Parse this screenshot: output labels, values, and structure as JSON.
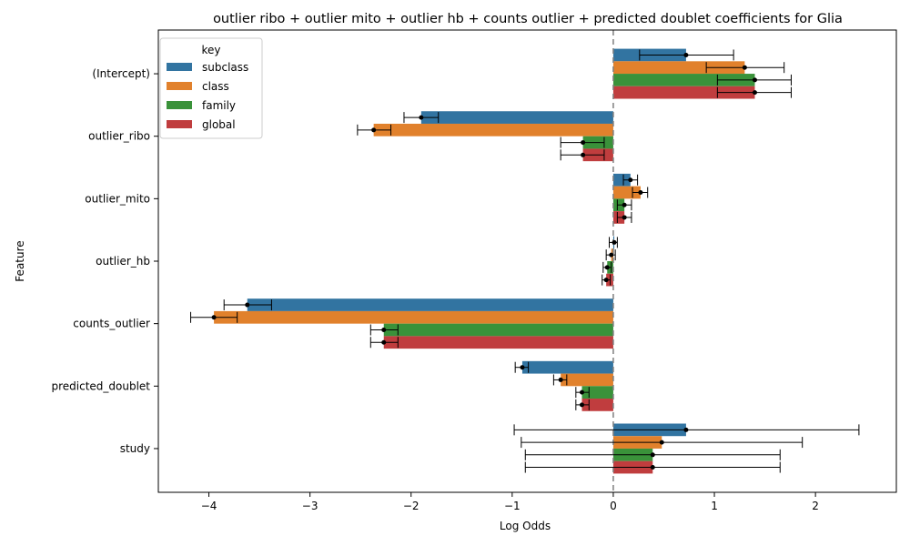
{
  "chart_data": {
    "type": "bar",
    "orientation": "horizontal",
    "title": "outlier ribo + outlier mito + outlier hb + counts outlier + predicted doublet coefficients for Glia",
    "xlabel": "Log Odds",
    "ylabel": "Feature",
    "xlim": [
      -4.5,
      2.8
    ],
    "xticks": [
      -4,
      -3,
      -2,
      -1,
      0,
      1,
      2
    ],
    "xtick_labels": [
      "−4",
      "−3",
      "−2",
      "−1",
      "0",
      "1",
      "2"
    ],
    "reference_line": 0,
    "legend": {
      "title": "key",
      "position": "upper-left"
    },
    "categories": [
      "(Intercept)",
      "outlier_ribo",
      "outlier_mito",
      "outlier_hb",
      "counts_outlier",
      "predicted_doublet",
      "study"
    ],
    "series": [
      {
        "name": "subclass",
        "color": "#3274a1",
        "values": [
          0.72,
          -1.9,
          0.17,
          0.01,
          -3.62,
          -0.9,
          0.72
        ],
        "ci_low": [
          0.26,
          -2.07,
          0.1,
          -0.04,
          -3.85,
          -0.97,
          -0.98
        ],
        "ci_high": [
          1.19,
          -1.73,
          0.24,
          0.04,
          -3.38,
          -0.84,
          2.43
        ]
      },
      {
        "name": "class",
        "color": "#e1812c",
        "values": [
          1.3,
          -2.37,
          0.27,
          -0.02,
          -3.95,
          -0.52,
          0.48
        ],
        "ci_low": [
          0.92,
          -2.53,
          0.19,
          -0.07,
          -4.18,
          -0.59,
          -0.91
        ],
        "ci_high": [
          1.69,
          -2.2,
          0.34,
          0.02,
          -3.72,
          -0.46,
          1.87
        ]
      },
      {
        "name": "family",
        "color": "#3a923a",
        "values": [
          1.4,
          -0.3,
          0.11,
          -0.06,
          -2.27,
          -0.31,
          0.39
        ],
        "ci_low": [
          1.03,
          -0.52,
          0.04,
          -0.1,
          -2.4,
          -0.37,
          -0.87
        ],
        "ci_high": [
          1.76,
          -0.09,
          0.18,
          -0.02,
          -2.13,
          -0.24,
          1.65
        ]
      },
      {
        "name": "global",
        "color": "#c03d3e",
        "values": [
          1.4,
          -0.3,
          0.11,
          -0.07,
          -2.27,
          -0.31,
          0.39
        ],
        "ci_low": [
          1.03,
          -0.52,
          0.04,
          -0.11,
          -2.4,
          -0.37,
          -0.87
        ],
        "ci_high": [
          1.76,
          -0.09,
          0.18,
          -0.03,
          -2.13,
          -0.24,
          1.65
        ]
      }
    ]
  }
}
